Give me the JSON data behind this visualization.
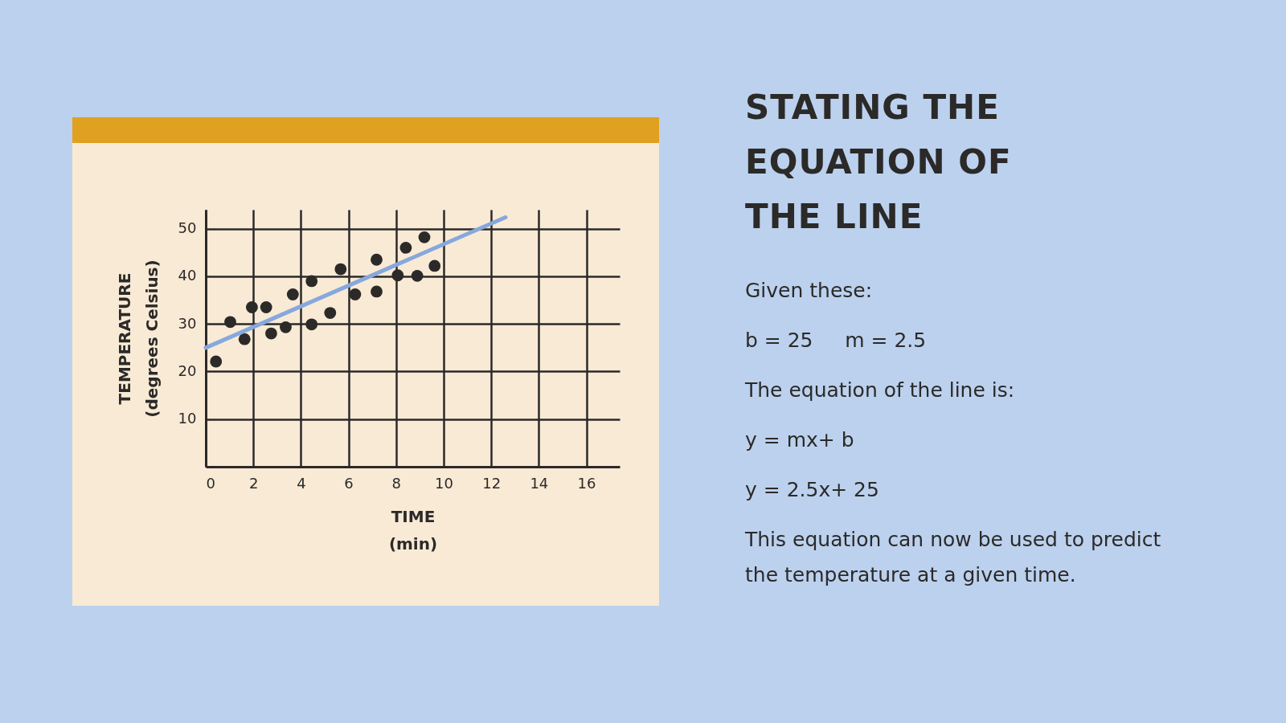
{
  "chart_data": {
    "type": "scatter",
    "title": "STATING THE EQUATION OF THE LINE",
    "xlabel": "TIME\n(min)",
    "ylabel": "TEMPERATURE\n(degrees Celsius)",
    "xlim": [
      0,
      17.4
    ],
    "xticks": [
      0,
      2,
      4,
      6,
      8,
      10,
      12,
      14,
      16
    ],
    "ylim": [
      0,
      54
    ],
    "yticks": [
      10,
      20,
      30,
      40,
      50
    ],
    "grid": true,
    "series": [
      {
        "marker": "circle",
        "color": "#2b2a28",
        "x": [
          0.43,
          1.03,
          1.63,
          1.94,
          2.54,
          2.75,
          3.36,
          3.66,
          4.45,
          4.45,
          5.23,
          5.67,
          6.28,
          7.18,
          7.18,
          8.07,
          8.41,
          8.89,
          9.19,
          9.62
        ],
        "values": [
          22.1,
          30.4,
          26.8,
          33.5,
          33.5,
          28.0,
          29.3,
          36.2,
          29.9,
          39.0,
          32.3,
          41.5,
          36.2,
          43.5,
          36.8,
          40.2,
          46.0,
          40.1,
          48.2,
          42.2
        ]
      },
      {
        "type": "line",
        "color": "#86a8dc",
        "x": [
          0,
          12.6
        ],
        "values": [
          25,
          52.4
        ]
      }
    ],
    "annotations": [
      "Given these:",
      "b = 25     m = 2.5",
      "The equation of the line is:",
      "y = mx+ b",
      "y = 2.5x+ 25",
      "This equation can now be used to predict the temperature at a given time."
    ]
  }
}
